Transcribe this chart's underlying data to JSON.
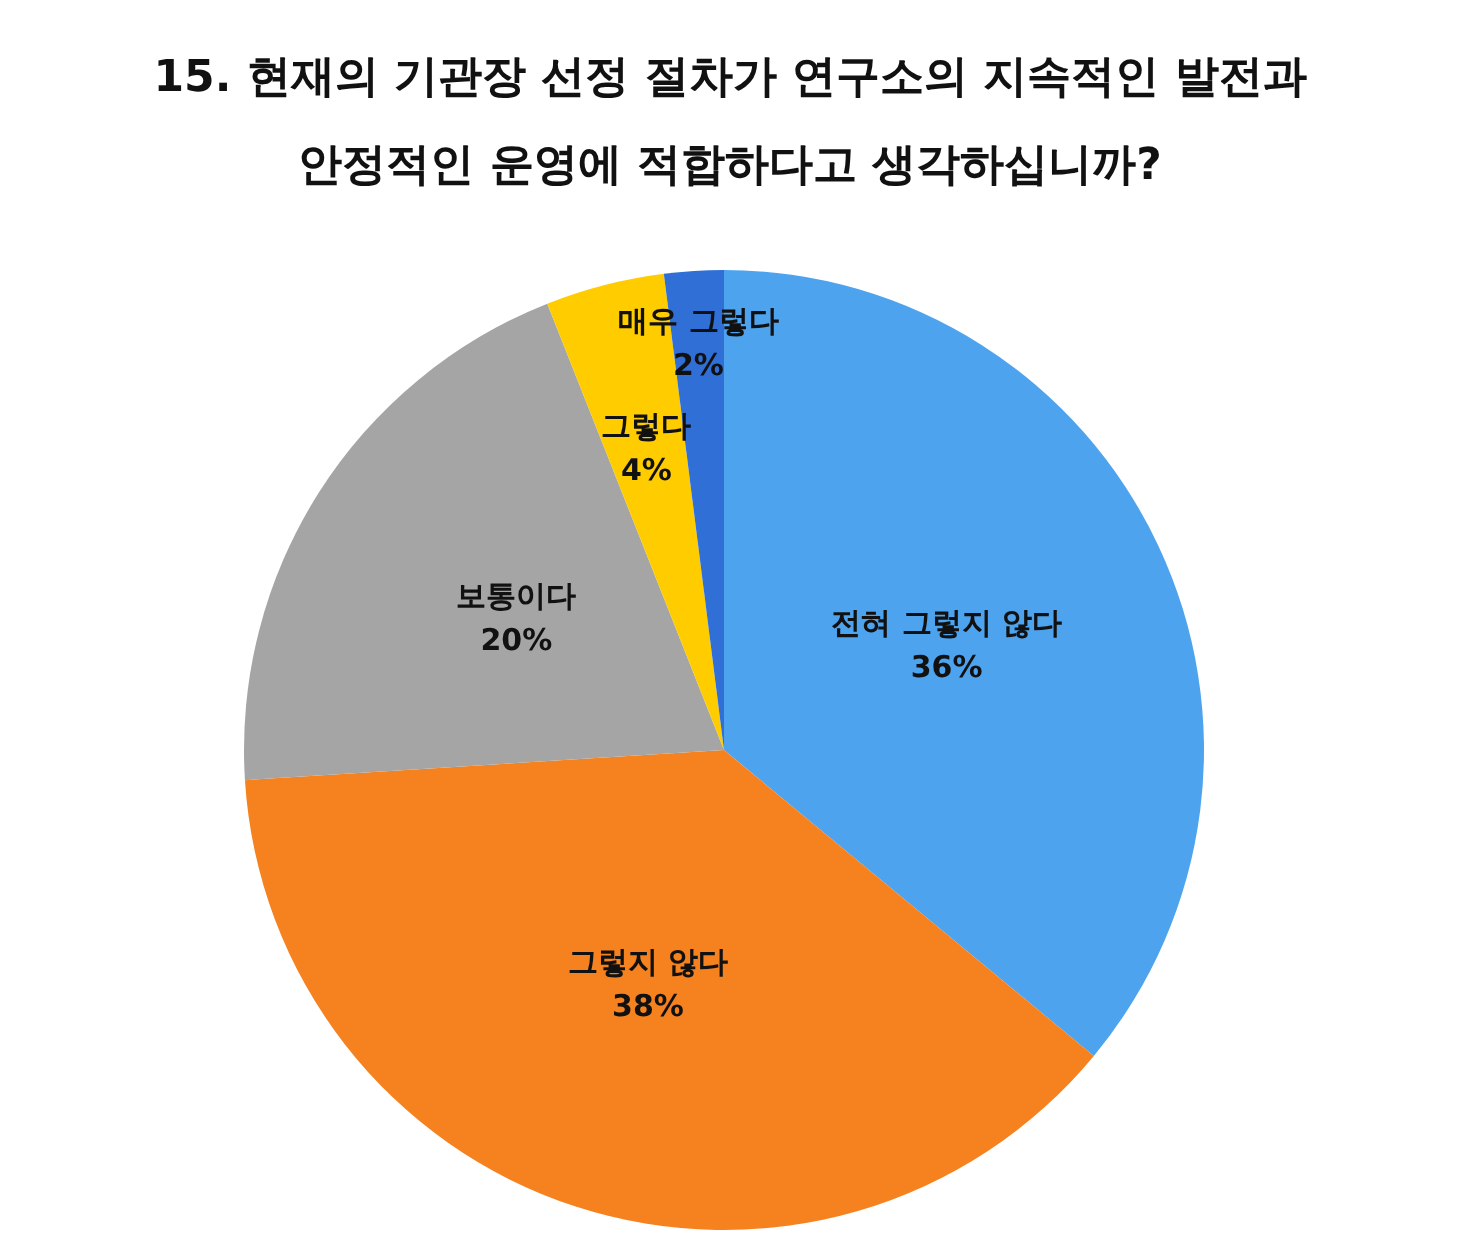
{
  "chart_data": {
    "type": "pie",
    "title": "15. 현재의 기관장 선정 절차가 연구소의 지속적인 발전과\n안정적인 운영에 적합하다고 생각하십니까?",
    "categories": [
      "전혀 그렇지 않다",
      "그렇지 않다",
      "보통이다",
      "그렇다",
      "매우 그렇다"
    ],
    "values": [
      36,
      38,
      20,
      4,
      2
    ],
    "value_labels": [
      "36%",
      "38%",
      "20%",
      "4%",
      "2%"
    ],
    "colors": [
      "#4ea3ee",
      "#f5821f",
      "#a5a5a5",
      "#ffcc00",
      "#2f6fd6"
    ],
    "legend": false
  }
}
